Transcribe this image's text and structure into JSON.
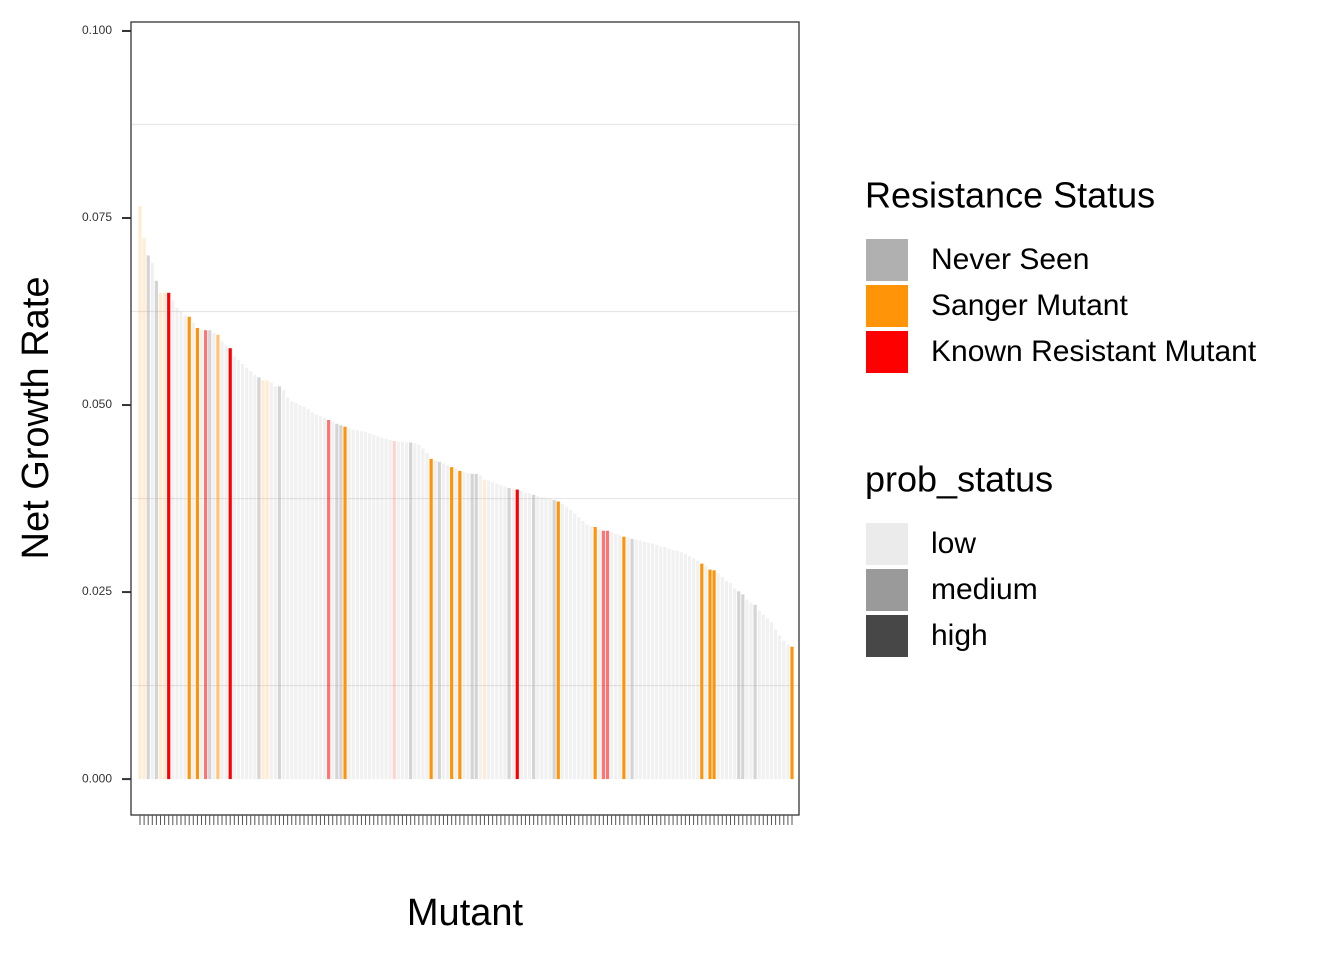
{
  "chart_data": {
    "type": "bar",
    "xlabel": "Mutant",
    "ylabel": "Net Growth Rate",
    "ylim": [
      -0.0048,
      0.1012
    ],
    "yticks": [
      {
        "value": 0,
        "label": "0.000"
      },
      {
        "value": 0.025,
        "label": "0.025"
      },
      {
        "value": 0.05,
        "label": "0.050"
      },
      {
        "value": 0.075,
        "label": "0.075"
      },
      {
        "value": 0.1,
        "label": "0.100"
      }
    ],
    "minor_grid": [
      0.0125,
      0.0375,
      0.0625,
      0.0875
    ],
    "grid": true,
    "legend_position": "right",
    "resistance_legend": {
      "title": "Resistance Status",
      "names": [
        "Never Seen",
        "Sanger Mutant",
        "Known Resistant Mutant"
      ],
      "colors": [
        "#b0b0b0",
        "#ff9408",
        "#ff0000"
      ]
    },
    "prob_legend": {
      "title": "prob_status",
      "names": [
        "low",
        "medium",
        "high"
      ],
      "colors": [
        "#ebebeb",
        "#9a9a9a",
        "#474747"
      ]
    },
    "values": [
      0.0766,
      0.0723,
      0.07,
      0.069,
      0.0666,
      0.065,
      0.065,
      0.065,
      0.064,
      0.063,
      0.0625,
      0.062,
      0.0618,
      0.061,
      0.0603,
      0.0601,
      0.06,
      0.06,
      0.0596,
      0.0594,
      0.0585,
      0.058,
      0.0576,
      0.0565,
      0.056,
      0.0555,
      0.055,
      0.0545,
      0.054,
      0.0537,
      0.0533,
      0.0533,
      0.053,
      0.0525,
      0.0525,
      0.052,
      0.051,
      0.0505,
      0.0503,
      0.05,
      0.0498,
      0.0495,
      0.049,
      0.0487,
      0.0485,
      0.0483,
      0.048,
      0.0478,
      0.0475,
      0.0473,
      0.0471,
      0.0469,
      0.0467,
      0.0466,
      0.0465,
      0.0464,
      0.0462,
      0.046,
      0.0458,
      0.0456,
      0.0455,
      0.0453,
      0.0452,
      0.0451,
      0.0451,
      0.045,
      0.045,
      0.0449,
      0.0447,
      0.0442,
      0.0436,
      0.0428,
      0.0426,
      0.0424,
      0.0422,
      0.042,
      0.0417,
      0.0416,
      0.0412,
      0.041,
      0.0409,
      0.0408,
      0.0408,
      0.0406,
      0.04,
      0.0399,
      0.0397,
      0.0395,
      0.0393,
      0.0391,
      0.0389,
      0.0388,
      0.0387,
      0.0385,
      0.0383,
      0.0382,
      0.038,
      0.0378,
      0.0377,
      0.0376,
      0.0375,
      0.0373,
      0.0371,
      0.0368,
      0.0364,
      0.036,
      0.0355,
      0.035,
      0.0345,
      0.034,
      0.0338,
      0.0337,
      0.0334,
      0.0332,
      0.0332,
      0.033,
      0.0328,
      0.0326,
      0.0324,
      0.0323,
      0.0321,
      0.032,
      0.0319,
      0.0317,
      0.0316,
      0.0315,
      0.0313,
      0.0311,
      0.031,
      0.0308,
      0.0306,
      0.0305,
      0.0303,
      0.0301,
      0.0298,
      0.0295,
      0.0292,
      0.0288,
      0.0285,
      0.028,
      0.0279,
      0.0275,
      0.027,
      0.0265,
      0.0262,
      0.0255,
      0.0251,
      0.0247,
      0.024,
      0.0236,
      0.0233,
      0.0225,
      0.022,
      0.0215,
      0.021,
      0.02,
      0.0192,
      0.0185,
      0.018,
      0.0177
    ],
    "resistance": [
      1,
      1,
      0,
      0,
      0,
      1,
      1,
      2,
      0,
      0,
      0,
      0,
      1,
      0,
      1,
      0,
      2,
      0,
      0,
      1,
      0,
      0,
      2,
      0,
      0,
      0,
      0,
      0,
      0,
      0,
      1,
      1,
      0,
      0,
      0,
      0,
      0,
      0,
      0,
      0,
      0,
      0,
      0,
      0,
      0,
      0,
      2,
      0,
      0,
      0,
      1,
      0,
      0,
      0,
      0,
      0,
      0,
      0,
      0,
      0,
      0,
      0,
      2,
      0,
      0,
      0,
      0,
      0,
      0,
      0,
      0,
      1,
      0,
      0,
      0,
      0,
      1,
      0,
      1,
      0,
      0,
      0,
      0,
      0,
      1,
      0,
      0,
      0,
      0,
      0,
      0,
      0,
      2,
      0,
      0,
      0,
      0,
      0,
      0,
      0,
      0,
      0,
      1,
      0,
      0,
      0,
      0,
      0,
      0,
      0,
      0,
      1,
      0,
      2,
      2,
      0,
      0,
      0,
      1,
      0,
      0,
      0,
      0,
      0,
      0,
      0,
      0,
      0,
      0,
      0,
      0,
      0,
      0,
      0,
      0,
      0,
      0,
      1,
      0,
      1,
      1,
      0,
      0,
      0,
      0,
      0,
      0,
      0,
      0,
      0,
      0,
      0,
      0,
      0,
      0,
      0,
      0,
      0,
      0,
      1
    ],
    "prob": [
      0,
      0,
      1,
      0,
      1,
      0,
      0,
      2,
      0,
      0,
      0,
      0,
      2,
      0,
      2,
      0,
      1,
      1,
      0,
      1,
      0,
      0,
      2,
      0,
      0,
      0,
      0,
      0,
      0,
      1,
      0,
      0,
      0,
      0,
      1,
      0,
      0,
      0,
      0,
      0,
      0,
      0,
      0,
      0,
      0,
      0,
      1,
      0,
      1,
      1,
      2,
      0,
      0,
      0,
      0,
      0,
      0,
      0,
      0,
      0,
      0,
      0,
      0,
      0,
      0,
      0,
      1,
      0,
      0,
      0,
      0,
      2,
      0,
      1,
      0,
      0,
      2,
      0,
      2,
      0,
      0,
      1,
      1,
      0,
      0,
      0,
      0,
      0,
      0,
      0,
      1,
      0,
      2,
      0,
      0,
      0,
      1,
      0,
      0,
      0,
      0,
      1,
      2,
      0,
      0,
      0,
      0,
      0,
      0,
      0,
      0,
      2,
      0,
      1,
      1,
      0,
      0,
      0,
      2,
      0,
      1,
      0,
      0,
      0,
      0,
      0,
      0,
      0,
      0,
      0,
      0,
      0,
      0,
      0,
      0,
      0,
      0,
      2,
      0,
      2,
      2,
      0,
      0,
      0,
      0,
      0,
      1,
      1,
      0,
      0,
      1,
      0,
      0,
      0,
      0,
      0,
      0,
      0,
      0,
      2
    ]
  }
}
